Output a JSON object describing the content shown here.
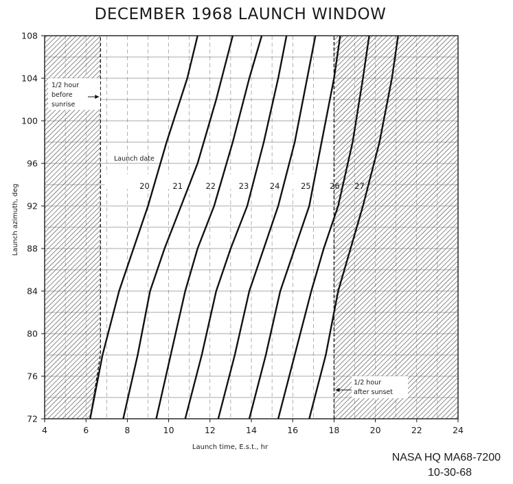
{
  "chart_data": {
    "type": "line",
    "title": "DECEMBER 1968 LAUNCH WINDOW",
    "xlabel": "Launch time, E.s.t., hr",
    "ylabel": "Launch azimuth, deg",
    "xlim": [
      4,
      24
    ],
    "ylim": [
      72,
      108
    ],
    "xticks": [
      4,
      6,
      8,
      10,
      12,
      14,
      16,
      18,
      20,
      22,
      24
    ],
    "yticks": [
      72,
      76,
      80,
      84,
      88,
      92,
      96,
      100,
      104,
      108
    ],
    "grid": true,
    "legend_title": "Launch date",
    "series": [
      {
        "name": "20",
        "x": [
          6.2,
          6.8,
          7.6,
          8.3,
          9.0,
          9.9,
          10.9,
          11.4
        ],
        "y": [
          72,
          78,
          84,
          88,
          92,
          98,
          104,
          108
        ]
      },
      {
        "name": "21",
        "x": [
          7.8,
          8.5,
          9.1,
          9.8,
          10.6,
          11.4,
          12.3,
          13.1
        ],
        "y": [
          72,
          78,
          84,
          88,
          92,
          96,
          102,
          108
        ]
      },
      {
        "name": "22",
        "x": [
          9.4,
          10.1,
          10.8,
          11.4,
          12.2,
          13.1,
          13.9,
          14.5
        ],
        "y": [
          72,
          78,
          84,
          88,
          92,
          98,
          104,
          108
        ]
      },
      {
        "name": "23",
        "x": [
          10.8,
          11.6,
          12.3,
          13.0,
          13.8,
          14.6,
          15.3,
          15.7
        ],
        "y": [
          72,
          78,
          84,
          88,
          92,
          98,
          104,
          108
        ]
      },
      {
        "name": "24",
        "x": [
          12.4,
          13.2,
          13.9,
          14.6,
          15.3,
          16.1,
          16.7,
          17.1
        ],
        "y": [
          72,
          78,
          84,
          88,
          92,
          98,
          104,
          108
        ]
      },
      {
        "name": "25",
        "x": [
          13.9,
          14.7,
          15.4,
          16.1,
          16.8,
          17.4,
          18.0,
          18.3
        ],
        "y": [
          72,
          78,
          84,
          88,
          92,
          98,
          104,
          108
        ]
      },
      {
        "name": "26",
        "x": [
          15.3,
          16.1,
          16.9,
          17.5,
          18.2,
          18.9,
          19.4,
          19.7
        ],
        "y": [
          72,
          78,
          84,
          88,
          92,
          98,
          104,
          108
        ]
      },
      {
        "name": "27",
        "x": [
          16.8,
          17.6,
          18.2,
          18.8,
          19.4,
          20.2,
          20.8,
          21.1
        ],
        "y": [
          72,
          78,
          84,
          88,
          92,
          98,
          104,
          108
        ]
      }
    ],
    "boundaries": [
      {
        "label_lines": [
          "1/2 hour",
          "before",
          "sunrise"
        ],
        "x": [
          6.2,
          6.7,
          6.7
        ],
        "y": [
          72,
          78,
          108
        ]
      },
      {
        "label_lines": [
          "1/2 hour",
          "after sunset"
        ],
        "x": [
          18.0,
          18.0
        ],
        "y": [
          72,
          108
        ]
      }
    ]
  },
  "credit": {
    "line1": "NASA HQ MA68-7200",
    "line2": "10-30-68"
  },
  "colors": {
    "ink": "#1a1a1a",
    "hatch": "#4a4a4a",
    "paper": "#ffffff"
  }
}
